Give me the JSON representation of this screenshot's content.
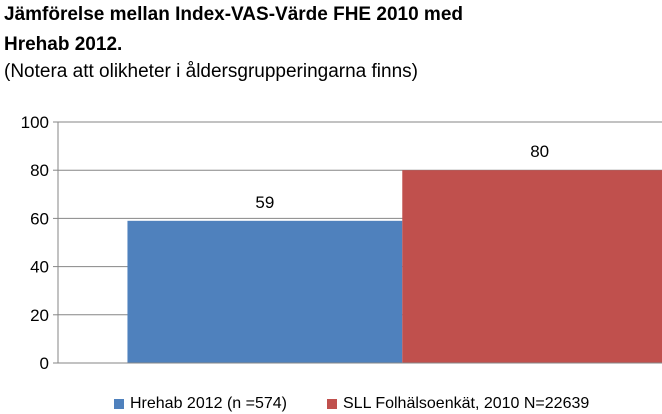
{
  "chart_data": {
    "type": "bar",
    "title_lines": [
      "Jämförelse mellan Index-VAS-Värde FHE  2010 med",
      "Hrehab 2012."
    ],
    "subtitle": "(Notera att olikheter i åldersgrupperingarna finns)",
    "xlabel": "",
    "ylabel": "",
    "ylim": [
      0,
      100
    ],
    "yticks": [
      0,
      20,
      40,
      60,
      80,
      100
    ],
    "grid": true,
    "legend_position": "bottom",
    "series": [
      {
        "name": "Hrehab 2012 (n =574)",
        "value": 59,
        "color": "#4f81bd",
        "label": "59"
      },
      {
        "name": "SLL  Folhälsoenkät, 2010 N=22639",
        "value": 80,
        "color": "#c0504d",
        "label": "80"
      }
    ]
  }
}
